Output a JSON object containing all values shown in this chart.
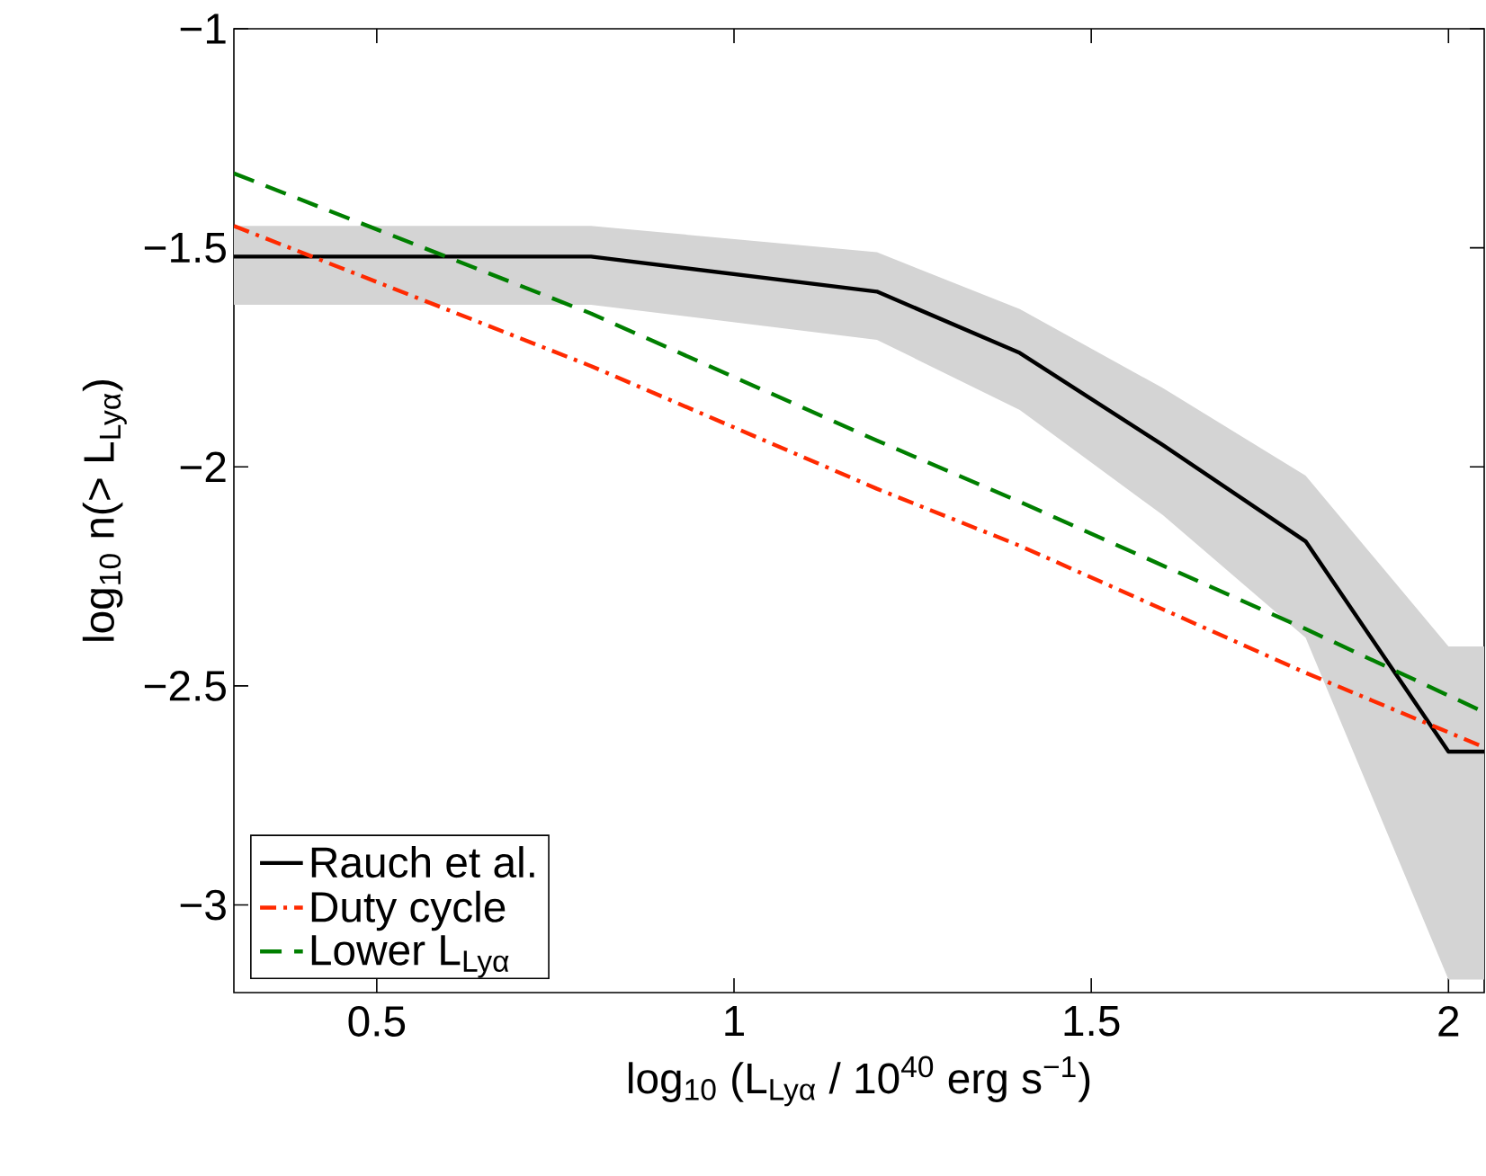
{
  "chart_data": {
    "type": "line",
    "xlabel": "log$_{10}$ (L$_{Lyα}$ / 10$^{40}$ erg s$^{−1}$)",
    "ylabel": "log$_{10}$ n(> L$_{Lyα}$)",
    "xlim": [
      0.3,
      2.05
    ],
    "ylim": [
      -3.2,
      -1
    ],
    "xticks": [
      0.5,
      1,
      1.5,
      2
    ],
    "yticks": [
      {
        "value": -3,
        "label": "−3"
      },
      {
        "value": -2.5,
        "label": "−2.5"
      },
      {
        "value": -2,
        "label": "−2"
      },
      {
        "value": -1.5,
        "label": "−1.5"
      },
      {
        "value": -1,
        "label": "−1"
      }
    ],
    "grid": false,
    "legend": "bottom left",
    "series": [
      {
        "name": "Rauch et al.",
        "color": "#000000",
        "line_style": "solid",
        "x": [
          0.3,
          0.8,
          1.2,
          1.4,
          1.6,
          1.8,
          2.0,
          2.05
        ],
        "values": [
          -1.52,
          -1.52,
          -1.6,
          -1.74,
          -1.95,
          -2.17,
          -2.65,
          -2.65
        ],
        "upper": [
          -1.45,
          -1.45,
          -1.51,
          -1.64,
          -1.82,
          -2.02,
          -2.41,
          -2.41
        ],
        "lower": [
          -1.63,
          -1.63,
          -1.71,
          -1.87,
          -2.11,
          -2.39,
          -3.17,
          -3.17
        ]
      },
      {
        "name": "Duty cycle",
        "color": "#ff2a00",
        "line_style": "dashdot",
        "x": [
          0.3,
          0.8,
          1.2,
          1.4,
          1.8,
          2.05
        ],
        "values": [
          -1.45,
          -1.77,
          -2.05,
          -2.18,
          -2.47,
          -2.64
        ]
      },
      {
        "name": "Lower L$_{Lyα}$",
        "color": "#007f00",
        "line_style": "dashed",
        "x": [
          0.3,
          0.8,
          1.2,
          1.4,
          1.8,
          2.05
        ],
        "values": [
          -1.33,
          -1.65,
          -1.94,
          -2.08,
          -2.37,
          -2.56
        ]
      }
    ]
  }
}
